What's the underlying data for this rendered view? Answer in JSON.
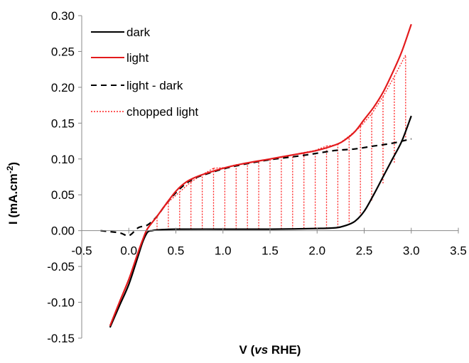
{
  "chart_data": {
    "type": "line",
    "xlabel_prefix": "V (",
    "xlabel_italic": "vs",
    "xlabel_suffix": " RHE)",
    "ylabel_main": "I (mA.cm",
    "ylabel_sup": "-2",
    "ylabel_close": ")",
    "xlim": [
      -0.5,
      3.5
    ],
    "ylim": [
      -0.15,
      0.3
    ],
    "x_ticks": [
      "-0.5",
      "0.0",
      "0.5",
      "1.0",
      "1.5",
      "2.0",
      "2.5",
      "3.0",
      "3.5"
    ],
    "x_tick_values": [
      -0.5,
      0.0,
      0.5,
      1.0,
      1.5,
      2.0,
      2.5,
      3.0,
      3.5
    ],
    "y_ticks": [
      "-0.15",
      "-0.10",
      "-0.05",
      "0.00",
      "0.05",
      "0.10",
      "0.15",
      "0.20",
      "0.25",
      "0.30"
    ],
    "y_tick_values": [
      -0.15,
      -0.1,
      -0.05,
      0.0,
      0.05,
      0.1,
      0.15,
      0.2,
      0.25,
      0.3
    ],
    "grid": false,
    "legend_position": "top-left",
    "series": [
      {
        "name": "dark",
        "color": "#000000",
        "style": "solid",
        "x": [
          -0.2,
          -0.1,
          0.0,
          0.1,
          0.15,
          0.2,
          0.25,
          0.3,
          0.5,
          1.0,
          1.5,
          2.0,
          2.2,
          2.3,
          2.4,
          2.5,
          2.6,
          2.7,
          2.8,
          2.9,
          3.0
        ],
        "y": [
          -0.135,
          -0.105,
          -0.075,
          -0.035,
          -0.015,
          -0.002,
          0.0,
          0.001,
          0.002,
          0.002,
          0.002,
          0.003,
          0.004,
          0.007,
          0.013,
          0.027,
          0.05,
          0.075,
          0.1,
          0.125,
          0.16
        ]
      },
      {
        "name": "light",
        "color": "#e31a1c",
        "style": "solid",
        "x": [
          -0.2,
          -0.1,
          0.0,
          0.1,
          0.15,
          0.2,
          0.3,
          0.4,
          0.5,
          0.6,
          0.7,
          0.8,
          1.0,
          1.2,
          1.5,
          1.8,
          2.0,
          2.2,
          2.3,
          2.4,
          2.5,
          2.6,
          2.7,
          2.8,
          2.9,
          3.0
        ],
        "y": [
          -0.133,
          -0.1,
          -0.068,
          -0.03,
          -0.012,
          0.003,
          0.02,
          0.038,
          0.055,
          0.067,
          0.074,
          0.079,
          0.087,
          0.093,
          0.1,
          0.107,
          0.112,
          0.12,
          0.127,
          0.138,
          0.155,
          0.172,
          0.193,
          0.22,
          0.25,
          0.288
        ]
      },
      {
        "name": "light - dark",
        "color": "#000000",
        "style": "dashed",
        "x": [
          -0.3,
          -0.1,
          0.0,
          0.1,
          0.2,
          0.3,
          0.4,
          0.5,
          0.6,
          0.7,
          0.8,
          1.0,
          1.2,
          1.5,
          1.8,
          2.0,
          2.2,
          2.4,
          2.6,
          2.8,
          3.0
        ],
        "y": [
          0.0,
          -0.003,
          -0.007,
          0.004,
          0.008,
          0.02,
          0.038,
          0.053,
          0.065,
          0.073,
          0.078,
          0.086,
          0.092,
          0.099,
          0.104,
          0.108,
          0.112,
          0.114,
          0.118,
          0.122,
          0.128
        ]
      },
      {
        "name": "chopped light",
        "color": "#ff2020",
        "style": "dotted",
        "chop_x": [
          0.3,
          0.42,
          0.54,
          0.66,
          0.78,
          0.9,
          1.02,
          1.14,
          1.26,
          1.38,
          1.5,
          1.62,
          1.74,
          1.86,
          1.98,
          2.1,
          2.22,
          2.34,
          2.46,
          2.58,
          2.7,
          2.82,
          2.94
        ],
        "chop_bottom": [
          0.001,
          0.001,
          0.002,
          0.002,
          0.002,
          0.002,
          0.002,
          0.002,
          0.002,
          0.002,
          0.002,
          0.002,
          0.002,
          0.003,
          0.003,
          0.003,
          0.004,
          0.008,
          0.02,
          0.042,
          0.066,
          0.095,
          0.13
        ],
        "chop_top": [
          0.02,
          0.04,
          0.054,
          0.068,
          0.078,
          0.087,
          0.088,
          0.092,
          0.094,
          0.097,
          0.1,
          0.103,
          0.106,
          0.109,
          0.112,
          0.118,
          0.12,
          0.132,
          0.145,
          0.163,
          0.187,
          0.215,
          0.245
        ]
      }
    ]
  }
}
